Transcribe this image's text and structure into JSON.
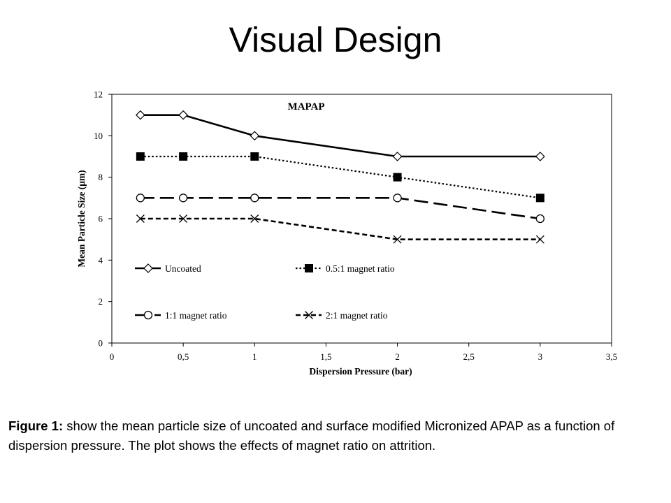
{
  "slide": {
    "title": "Visual Design"
  },
  "caption": {
    "label": "Figure 1:",
    "text": " show the mean particle size of uncoated and surface modified Micronized APAP as a function of dispersion pressure. The plot shows the effects of magnet ratio on attrition."
  },
  "chart_data": {
    "type": "line",
    "title": "MAPAP",
    "xlabel": "Dispersion Pressure (bar)",
    "ylabel": "Mean Particle Size (μm)",
    "xlim": [
      0,
      3.5
    ],
    "ylim": [
      0,
      12
    ],
    "x_ticks": [
      "0",
      "0,5",
      "1",
      "1,5",
      "2",
      "2,5",
      "3",
      "3,5"
    ],
    "y_ticks": [
      "0",
      "2",
      "4",
      "6",
      "8",
      "10",
      "12"
    ],
    "grid": false,
    "legend_placement": "inside-left",
    "series": [
      {
        "name": "Uncoated",
        "marker": "diamond",
        "dash": "solid",
        "x": [
          0.2,
          0.5,
          1,
          2,
          3
        ],
        "y": [
          11,
          11,
          10,
          9,
          9
        ]
      },
      {
        "name": "0.5:1 magnet ratio",
        "marker": "square",
        "dash": "dotted",
        "x": [
          0.2,
          0.5,
          1,
          2,
          3
        ],
        "y": [
          9,
          9,
          9,
          8,
          7
        ]
      },
      {
        "name": "1:1 magnet ratio",
        "marker": "circle",
        "dash": "longdash",
        "x": [
          0.2,
          0.5,
          1,
          2,
          3
        ],
        "y": [
          7,
          7,
          7,
          7,
          6
        ]
      },
      {
        "name": "2:1 magnet ratio",
        "marker": "x",
        "dash": "dashed",
        "x": [
          0.2,
          0.5,
          1,
          2,
          3
        ],
        "y": [
          6,
          6,
          6,
          5,
          5
        ]
      }
    ]
  }
}
